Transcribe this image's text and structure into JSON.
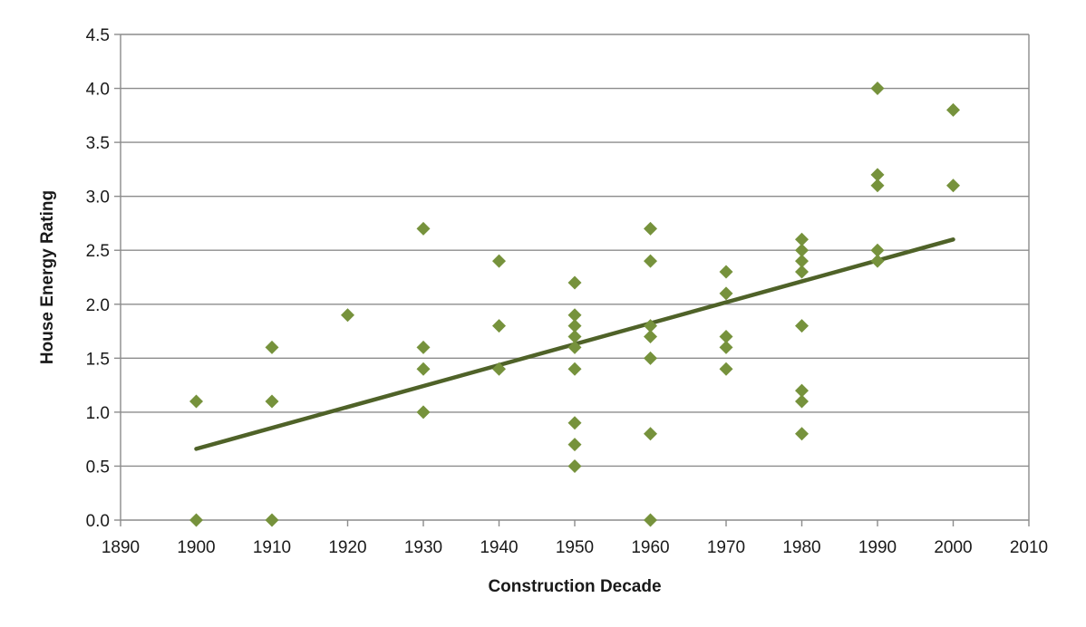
{
  "chart_data": {
    "type": "scatter",
    "title": "",
    "xlabel": "Construction Decade",
    "ylabel": "House Energy Rating",
    "xlim": [
      1890,
      2010
    ],
    "ylim": [
      0,
      4.5
    ],
    "x_ticks": [
      1890,
      1900,
      1910,
      1920,
      1930,
      1940,
      1950,
      1960,
      1970,
      1980,
      1990,
      2000,
      2010
    ],
    "y_ticks": [
      "0.0",
      "0.5",
      "1.0",
      "1.5",
      "2.0",
      "2.5",
      "3.0",
      "3.5",
      "4.0",
      "4.5"
    ],
    "grid": "horizontal",
    "legend": "none",
    "marker": "diamond",
    "colors": {
      "points": "#76923c",
      "trendline": "#4f6228"
    },
    "series": [
      {
        "values": [
          [
            1900,
            1.1
          ],
          [
            1900,
            0.0
          ],
          [
            1910,
            1.6
          ],
          [
            1910,
            1.1
          ],
          [
            1910,
            0.0
          ],
          [
            1920,
            1.9
          ],
          [
            1930,
            2.7
          ],
          [
            1930,
            1.6
          ],
          [
            1930,
            1.4
          ],
          [
            1930,
            1.0
          ],
          [
            1940,
            2.4
          ],
          [
            1940,
            1.8
          ],
          [
            1940,
            1.4
          ],
          [
            1950,
            2.2
          ],
          [
            1950,
            1.9
          ],
          [
            1950,
            1.8
          ],
          [
            1950,
            1.7
          ],
          [
            1950,
            1.6
          ],
          [
            1950,
            1.4
          ],
          [
            1950,
            0.9
          ],
          [
            1950,
            0.7
          ],
          [
            1950,
            0.5
          ],
          [
            1960,
            2.7
          ],
          [
            1960,
            2.4
          ],
          [
            1960,
            1.8
          ],
          [
            1960,
            1.7
          ],
          [
            1960,
            1.5
          ],
          [
            1960,
            0.8
          ],
          [
            1960,
            0.0
          ],
          [
            1970,
            2.3
          ],
          [
            1970,
            2.1
          ],
          [
            1970,
            1.7
          ],
          [
            1970,
            1.6
          ],
          [
            1970,
            1.4
          ],
          [
            1980,
            2.6
          ],
          [
            1980,
            2.5
          ],
          [
            1980,
            2.4
          ],
          [
            1980,
            2.3
          ],
          [
            1980,
            1.8
          ],
          [
            1980,
            1.2
          ],
          [
            1980,
            1.1
          ],
          [
            1980,
            0.8
          ],
          [
            1990,
            4.0
          ],
          [
            1990,
            3.2
          ],
          [
            1990,
            3.1
          ],
          [
            1990,
            2.5
          ],
          [
            1990,
            2.4
          ],
          [
            2000,
            3.8
          ],
          [
            2000,
            3.1
          ]
        ]
      }
    ],
    "trendline": {
      "type": "linear",
      "points": [
        [
          1900,
          0.66
        ],
        [
          2000,
          2.6
        ]
      ]
    }
  }
}
